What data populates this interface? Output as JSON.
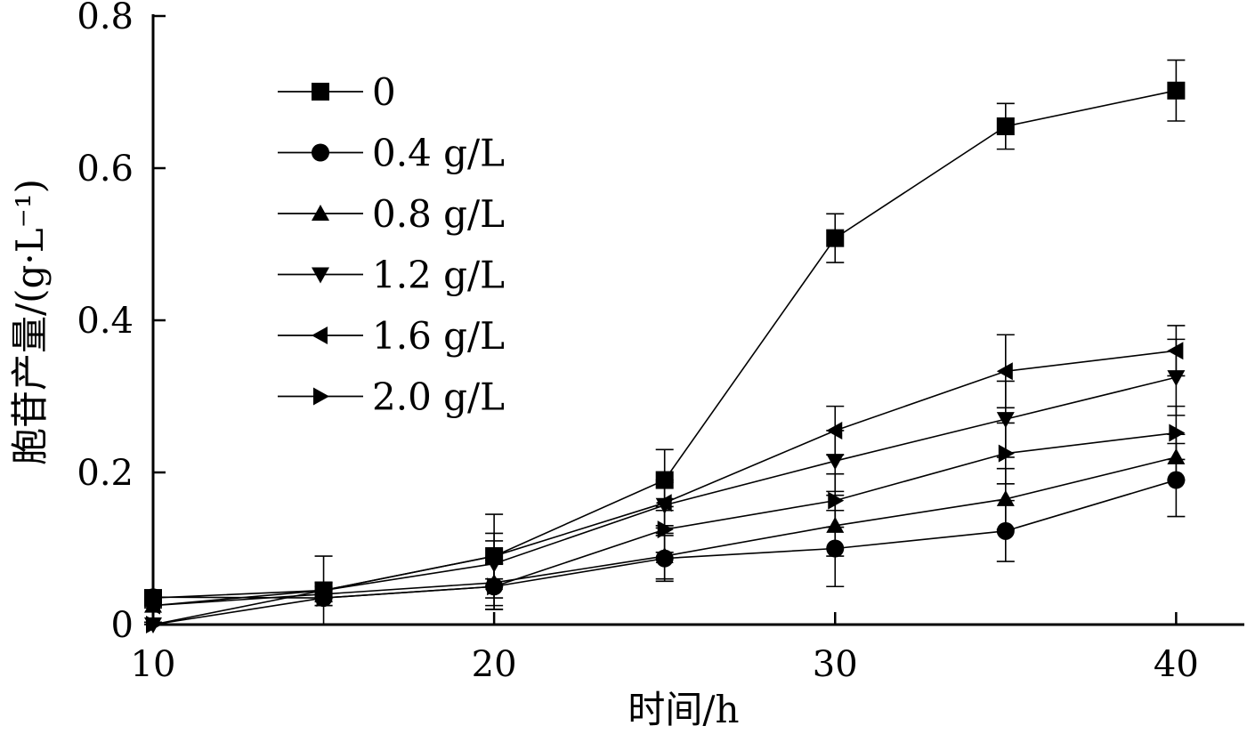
{
  "chart_data": {
    "type": "line",
    "xlabel": "时间/h",
    "ylabel": "胞苷产量/(g·L⁻¹)",
    "xlim": [
      10,
      42
    ],
    "ylim": [
      0,
      0.8
    ],
    "xticks": [
      10,
      20,
      30,
      40
    ],
    "yticks": [
      0,
      0.2,
      0.4,
      0.6,
      0.8
    ],
    "xtick_labels": [
      "10",
      "20",
      "30",
      "40"
    ],
    "ytick_labels": [
      "0",
      "0.2",
      "0.4",
      "0.6",
      "0.8"
    ],
    "grid": false,
    "legend_position": "top-left",
    "series": [
      {
        "name": "0",
        "marker": "square",
        "x": [
          10,
          15,
          20,
          25,
          30,
          35,
          40
        ],
        "y": [
          0.035,
          0.045,
          0.09,
          0.19,
          0.508,
          0.655,
          0.702
        ],
        "err": [
          0.005,
          0.045,
          0.055,
          0.04,
          0.032,
          0.03,
          0.04
        ]
      },
      {
        "name": "0.4 g/L",
        "marker": "circle",
        "x": [
          10,
          15,
          20,
          25,
          30,
          35,
          40
        ],
        "y": [
          0.036,
          0.035,
          0.05,
          0.087,
          0.1,
          0.123,
          0.19
        ],
        "err": [
          0.004,
          0.01,
          0.03,
          0.03,
          0.05,
          0.04,
          0.048
        ]
      },
      {
        "name": "0.8 g/L",
        "marker": "triangle-up",
        "x": [
          10,
          15,
          20,
          25,
          30,
          35,
          40
        ],
        "y": [
          0.025,
          0.04,
          0.055,
          0.09,
          0.13,
          0.165,
          0.22
        ],
        "err": [
          0.003,
          0.01,
          0.03,
          0.03,
          0.04,
          0.04,
          0.03
        ]
      },
      {
        "name": "1.2 g/L",
        "marker": "triangle-down",
        "x": [
          10,
          15,
          20,
          25,
          30,
          35,
          40
        ],
        "y": [
          0.0,
          0.045,
          0.08,
          0.157,
          0.215,
          0.27,
          0.325
        ],
        "err": [
          0.003,
          0.01,
          0.03,
          0.03,
          0.04,
          0.05,
          0.05
        ]
      },
      {
        "name": "1.6 g/L",
        "marker": "triangle-left",
        "x": [
          10,
          15,
          20,
          25,
          30,
          35,
          40
        ],
        "y": [
          0.025,
          0.045,
          0.09,
          0.16,
          0.255,
          0.333,
          0.36
        ],
        "err": [
          0.003,
          0.01,
          0.03,
          0.03,
          0.032,
          0.048,
          0.033
        ]
      },
      {
        "name": "2.0 g/L",
        "marker": "triangle-right",
        "x": [
          10,
          15,
          20,
          25,
          30,
          35,
          40
        ],
        "y": [
          0.0,
          0.035,
          0.05,
          0.125,
          0.163,
          0.225,
          0.252
        ],
        "err": [
          0.003,
          0.01,
          0.03,
          0.03,
          0.035,
          0.04,
          0.035
        ]
      }
    ]
  }
}
